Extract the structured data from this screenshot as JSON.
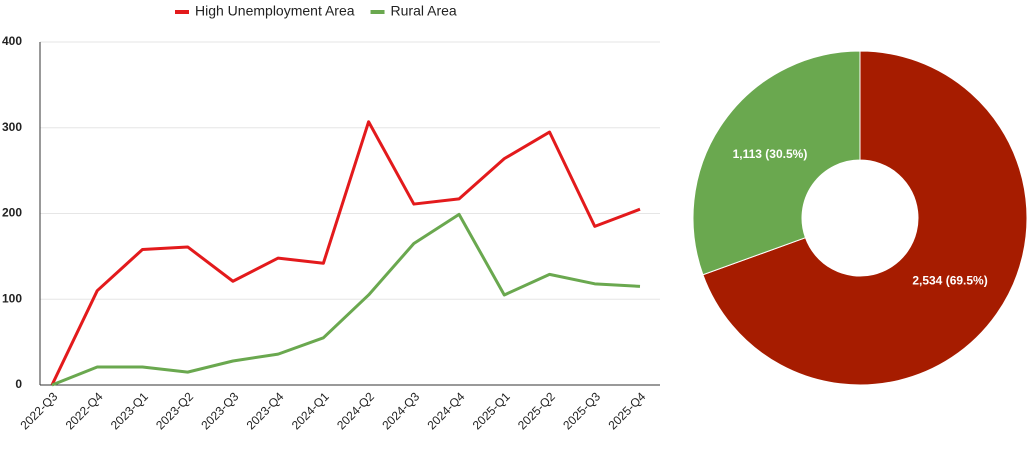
{
  "chart_data": [
    {
      "type": "line",
      "categories": [
        "2022-Q3",
        "2022-Q4",
        "2023-Q1",
        "2023-Q2",
        "2023-Q3",
        "2023-Q4",
        "2024-Q1",
        "2024-Q2",
        "2024-Q3",
        "2024-Q4",
        "2025-Q1",
        "2025-Q2",
        "2025-Q3",
        "2025-Q4"
      ],
      "series": [
        {
          "name": "High Unemployment Area",
          "color": "#e31a1c",
          "values": [
            0,
            110,
            158,
            161,
            121,
            148,
            142,
            307,
            211,
            217,
            264,
            295,
            185,
            205
          ]
        },
        {
          "name": "Rural Area",
          "color": "#6aa84f",
          "values": [
            0,
            21,
            21,
            15,
            28,
            36,
            55,
            105,
            165,
            199,
            105,
            129,
            118,
            115
          ]
        }
      ],
      "ylim": [
        0,
        400
      ],
      "yticks": [
        0,
        100,
        200,
        300,
        400
      ],
      "grid": true,
      "legend": "top"
    },
    {
      "type": "donut",
      "values": [
        2534,
        1113
      ],
      "value_labels": [
        "2,534 (69.5%)",
        "1,113 (30.5%)"
      ],
      "colors": [
        "#a61c00",
        "#6aa84f"
      ]
    }
  ]
}
